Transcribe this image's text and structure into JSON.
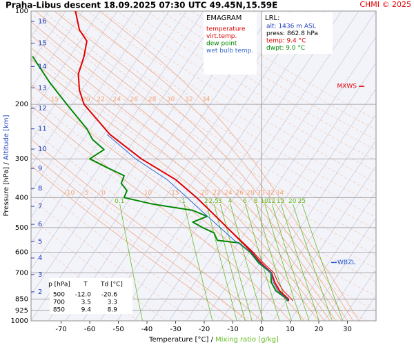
{
  "chart_data": {
    "type": "emagram",
    "title": "Praha-Libus  descent  18.09.2025 07:30 UTC  49.45N,15.59E",
    "credit": "CHMI © 2025",
    "x_label": "Temperature [°C]",
    "x_label_sep": "/",
    "x_label2": "Mixing ratio [g/kg]",
    "y_label": "Pressure [hPa]",
    "y_label_sep": "/",
    "y_label2": "Altitude [km]",
    "xlim": [
      -80.5,
      40
    ],
    "xticks": [
      -70,
      -60,
      -50,
      -40,
      -30,
      -20,
      -10,
      0,
      10,
      20,
      30
    ],
    "ylim": [
      100,
      1000
    ],
    "yticks": [
      100,
      200,
      300,
      400,
      500,
      600,
      700,
      850,
      925,
      1000
    ],
    "log_y": true,
    "grid": true,
    "altitude_km": [
      2,
      3,
      4,
      5,
      6,
      7,
      8,
      9,
      10,
      11,
      12,
      13,
      14,
      15,
      16
    ],
    "altitude_hpa": [
      806,
      709,
      627,
      554,
      488,
      427,
      374,
      322,
      279,
      240,
      206,
      177,
      151,
      127,
      108
    ],
    "legend_title": "EMAGRAM",
    "series": [
      {
        "name": "temperature",
        "color": "#e00000",
        "pressure": [
          862.8,
          850,
          800,
          750,
          700,
          650,
          600,
          550,
          500,
          450,
          400,
          350,
          300,
          250,
          200,
          180,
          160,
          140,
          125,
          115,
          100
        ],
        "values": [
          9.4,
          9.4,
          6.3,
          4.6,
          3.5,
          -0.2,
          -3.4,
          -7.5,
          -12.0,
          -17,
          -22.7,
          -30,
          -42,
          -53,
          -62,
          -63.6,
          -64,
          -62,
          -61,
          -63.6,
          -65
        ]
      },
      {
        "name": "virt.temp.",
        "color": "#e00000",
        "pressure": [
          862.8,
          850,
          800,
          750,
          700,
          650,
          600,
          550,
          500,
          450,
          400,
          350,
          300
        ],
        "values": [
          10.9,
          10.5,
          7.6,
          5.7,
          4.3,
          0.6,
          -2.9,
          -7.2,
          -11.9,
          -16.9,
          -22.6,
          -30,
          -42
        ]
      },
      {
        "name": "dew point",
        "color": "#008800",
        "pressure": [
          862.8,
          850,
          800,
          750,
          700,
          650,
          600,
          560,
          550,
          520,
          500,
          480,
          460,
          440,
          420,
          400,
          380,
          360,
          340,
          320,
          300,
          280,
          260,
          240,
          200,
          170,
          140
        ],
        "values": [
          9.0,
          8.9,
          5,
          3.4,
          3.3,
          -1,
          -4,
          -8,
          -15.4,
          -16.6,
          -20.6,
          -24,
          -19,
          -24,
          -38,
          -48,
          -47,
          -49,
          -48,
          -54,
          -60,
          -55,
          -59,
          -61,
          -68,
          -74,
          -80
        ]
      },
      {
        "name": "wet bulb temp.",
        "color": "#3366cc",
        "pressure": [
          862.8,
          850,
          800,
          750,
          700,
          650,
          600,
          550,
          500,
          450,
          400,
          350,
          300,
          250
        ],
        "values": [
          9.2,
          8.9,
          5.8,
          4.1,
          3.4,
          -0.6,
          -3.7,
          -9.5,
          -14.5,
          -20,
          -26,
          -33,
          -44,
          -54
        ]
      }
    ],
    "lrl": {
      "title": "LRL:",
      "lines": [
        {
          "text": "alt: 1436 m ASL",
          "color": "#1f3fbf"
        },
        {
          "text": "press: 862.8 hPa",
          "color": "#000000"
        },
        {
          "text": "temp: 9.4 °C",
          "color": "#e00000"
        },
        {
          "text": "dwpt: 9.0 °C",
          "color": "#008800"
        }
      ]
    },
    "mixing_ratio": {
      "color": "#66bb22",
      "label_pressure": 415,
      "values": [
        0.1,
        1,
        2,
        2.5,
        3,
        4,
        6,
        8,
        10,
        12,
        15,
        20,
        25
      ]
    },
    "pseudo_adiabats": {
      "color": "#f0a070",
      "label_sets": [
        {
          "pressure": 200,
          "values": [
            15,
            20,
            22,
            24,
            26,
            28,
            30,
            32,
            34
          ]
        },
        {
          "pressure": 400,
          "values": [
            -10,
            -5,
            0,
            10,
            15,
            20,
            22,
            24,
            26,
            28,
            30,
            32,
            34
          ]
        }
      ]
    },
    "markers": [
      {
        "label": "MXWS",
        "pressure": 175,
        "color": "#e00000"
      },
      {
        "label": "WBZL",
        "pressure": 648,
        "color": "#2255cc"
      }
    ],
    "table": {
      "header": [
        "p [hPa]",
        "T",
        "Td [°C]"
      ],
      "rows": [
        [
          "500",
          "-12.0",
          "-20.6"
        ],
        [
          "700",
          "3.5",
          "3.3"
        ],
        [
          "850",
          "9.4",
          "8.9"
        ]
      ]
    }
  }
}
